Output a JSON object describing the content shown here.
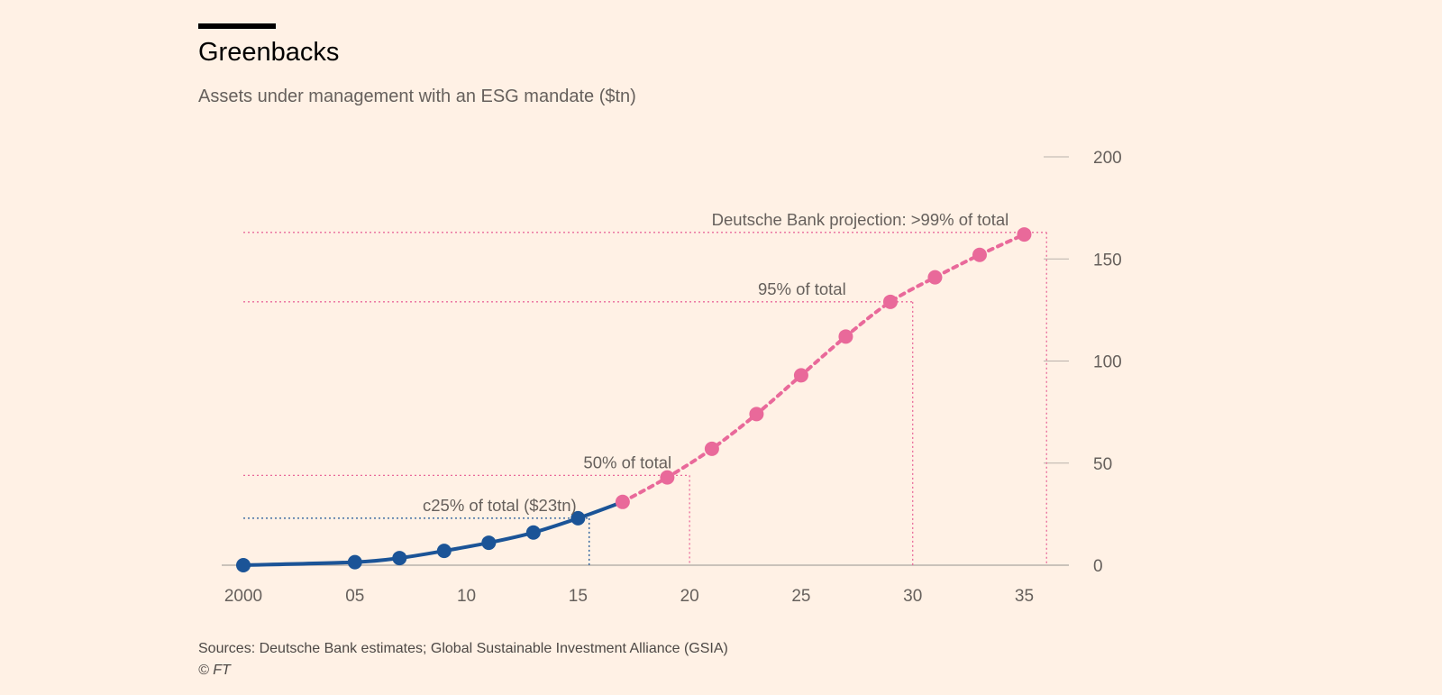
{
  "header": {
    "title": "Greenbacks",
    "subtitle": "Assets under management with an ESG mandate ($tn)"
  },
  "footer": {
    "sources": "Sources: Deutsche Bank estimates; Global Sustainable Investment Alliance (GSIA)",
    "copyright": "© FT"
  },
  "colors": {
    "historical": "#1b5497",
    "projection": "#e9699a",
    "axis": "#b9b2ab",
    "text": "#66605c"
  },
  "chart_data": {
    "type": "line",
    "title": "Greenbacks",
    "subtitle": "Assets under management with an ESG mandate ($tn)",
    "xlim": [
      2000,
      2037
    ],
    "ylim": [
      0,
      200
    ],
    "y_axis_position": "right",
    "x_ticks": [
      2000,
      2005,
      2010,
      2015,
      2020,
      2025,
      2030,
      2035
    ],
    "x_tick_labels": [
      "2000",
      "05",
      "10",
      "15",
      "20",
      "25",
      "30",
      "35"
    ],
    "y_ticks": [
      0,
      50,
      100,
      150,
      200
    ],
    "y_tick_labels": [
      "0",
      "50",
      "100",
      "150",
      "200"
    ],
    "series": [
      {
        "style": "solid",
        "points": [
          {
            "x": 2000,
            "y": 0
          },
          {
            "x": 2005,
            "y": 1.5
          },
          {
            "x": 2007,
            "y": 3.5
          },
          {
            "x": 2009,
            "y": 7
          },
          {
            "x": 2011,
            "y": 11
          },
          {
            "x": 2013,
            "y": 16
          },
          {
            "x": 2015,
            "y": 23
          },
          {
            "x": 2017,
            "y": 31
          }
        ]
      },
      {
        "style": "dotted",
        "points": [
          {
            "x": 2017,
            "y": 31
          },
          {
            "x": 2019,
            "y": 43
          },
          {
            "x": 2021,
            "y": 57
          },
          {
            "x": 2023,
            "y": 74
          },
          {
            "x": 2025,
            "y": 93
          },
          {
            "x": 2027,
            "y": 112
          },
          {
            "x": 2029,
            "y": 129
          },
          {
            "x": 2031,
            "y": 141
          },
          {
            "x": 2033,
            "y": 152
          },
          {
            "x": 2035,
            "y": 162
          }
        ]
      }
    ],
    "annotations": [
      {
        "label": "c25% of total ($23tn)",
        "x": 2015.5,
        "y": 23,
        "series": 0
      },
      {
        "label": "50% of total",
        "x": 2020,
        "y": 44,
        "series": 1
      },
      {
        "label": "95% of total",
        "x": 2030,
        "y": 129,
        "series": 1
      },
      {
        "label": "Deutsche Bank projection: >99% of total",
        "x": 2036,
        "y": 163,
        "series": 1
      }
    ]
  }
}
